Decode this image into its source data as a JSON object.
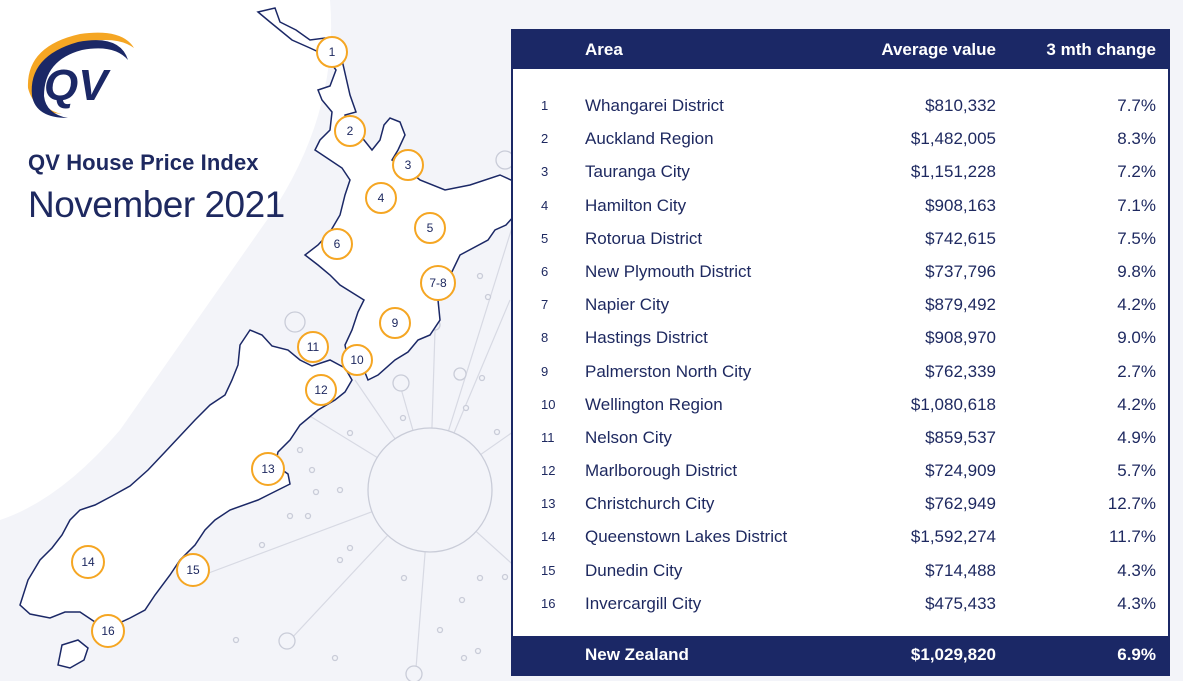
{
  "header": {
    "brand": "QV",
    "title_line1": "QV House Price Index",
    "title_line2": "November 2021"
  },
  "colors": {
    "navy": "#1b2866",
    "marker_orange": "#f5a623",
    "background": "#f3f4f9"
  },
  "map_markers": [
    "1",
    "2",
    "3",
    "4",
    "5",
    "6",
    "7-8",
    "9",
    "10",
    "11",
    "12",
    "13",
    "14",
    "15",
    "16"
  ],
  "table": {
    "columns": [
      "Area",
      "Average value",
      "3 mth change"
    ],
    "rows": [
      {
        "rank": "1",
        "area": "Whangarei District",
        "value": "$810,332",
        "change": "7.7%"
      },
      {
        "rank": "2",
        "area": "Auckland Region",
        "value": "$1,482,005",
        "change": "8.3%"
      },
      {
        "rank": "3",
        "area": "Tauranga City",
        "value": "$1,151,228",
        "change": "7.2%"
      },
      {
        "rank": "4",
        "area": "Hamilton City",
        "value": "$908,163",
        "change": "7.1%"
      },
      {
        "rank": "5",
        "area": "Rotorua District",
        "value": "$742,615",
        "change": "7.5%"
      },
      {
        "rank": "6",
        "area": "New Plymouth District",
        "value": "$737,796",
        "change": "9.8%"
      },
      {
        "rank": "7",
        "area": "Napier City",
        "value": "$879,492",
        "change": "4.2%"
      },
      {
        "rank": "8",
        "area": "Hastings District",
        "value": "$908,970",
        "change": "9.0%"
      },
      {
        "rank": "9",
        "area": "Palmerston North City",
        "value": "$762,339",
        "change": "2.7%"
      },
      {
        "rank": "10",
        "area": "Wellington Region",
        "value": "$1,080,618",
        "change": "4.2%"
      },
      {
        "rank": "11",
        "area": "Nelson City",
        "value": "$859,537",
        "change": "4.9%"
      },
      {
        "rank": "12",
        "area": "Marlborough District",
        "value": "$724,909",
        "change": "5.7%"
      },
      {
        "rank": "13",
        "area": "Christchurch City",
        "value": "$762,949",
        "change": "12.7%"
      },
      {
        "rank": "14",
        "area": "Queenstown Lakes District",
        "value": "$1,592,274",
        "change": "11.7%"
      },
      {
        "rank": "15",
        "area": "Dunedin City",
        "value": "$714,488",
        "change": "4.3%"
      },
      {
        "rank": "16",
        "area": "Invercargill City",
        "value": "$475,433",
        "change": "4.3%"
      }
    ],
    "total": {
      "area": "New Zealand",
      "value": "$1,029,820",
      "change": "6.9%"
    }
  }
}
